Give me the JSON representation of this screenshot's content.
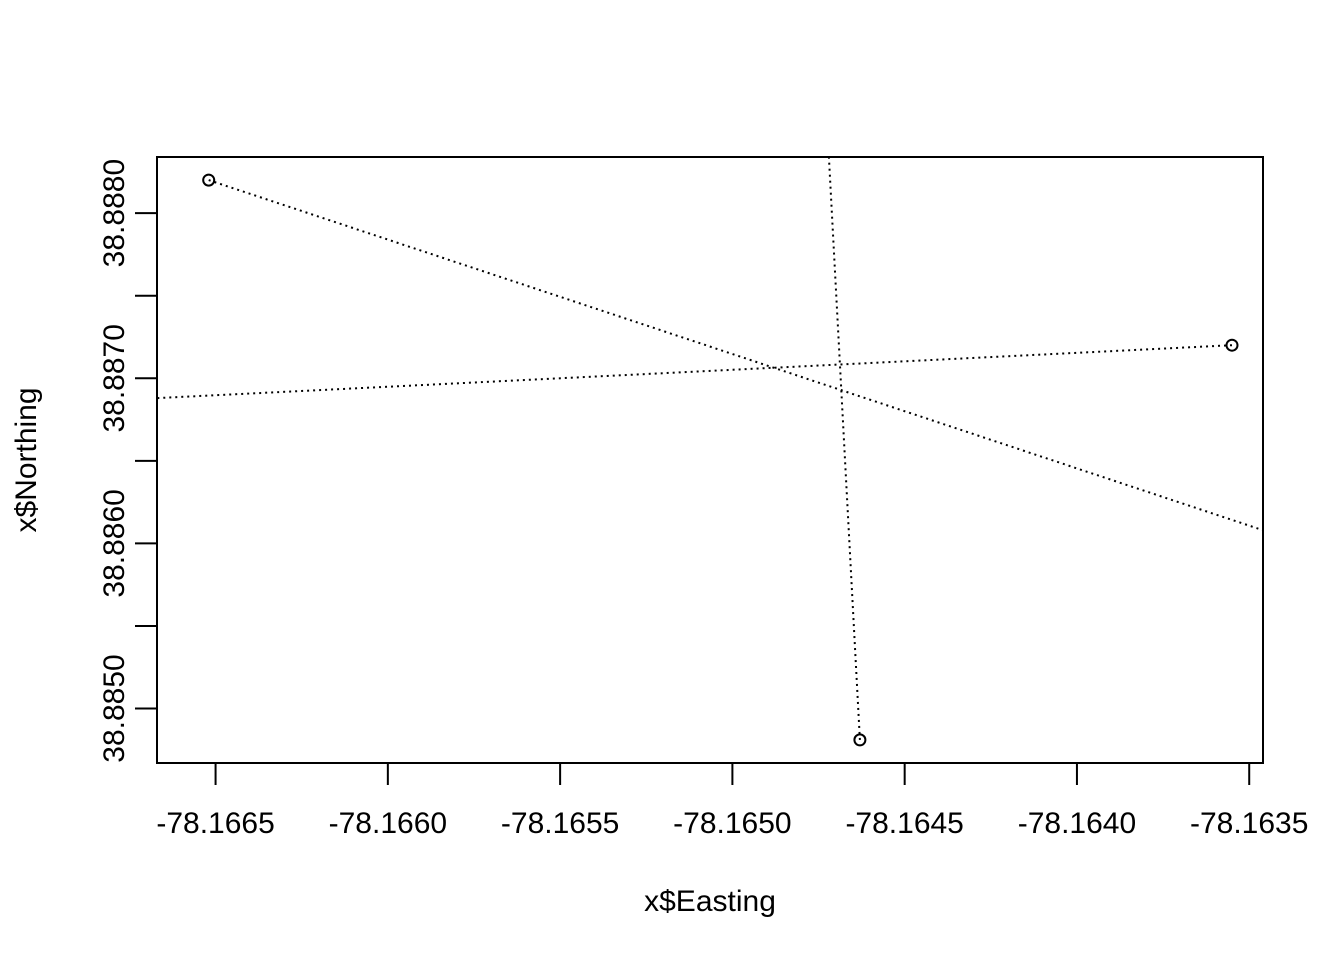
{
  "chart_data": {
    "type": "scatter",
    "title": "",
    "xlabel": "x$Easting",
    "ylabel": "x$Northing",
    "xlim": [
      -78.16667,
      -78.16346
    ],
    "ylim": [
      38.88467,
      38.88834
    ],
    "xticks": [
      -78.1665,
      -78.166,
      -78.1655,
      -78.165,
      -78.1645,
      -78.164,
      -78.1635
    ],
    "xtick_labels": [
      "-78.1665",
      "-78.1660",
      "-78.1655",
      "-78.1650",
      "-78.1645",
      "-78.1640",
      "-78.1635"
    ],
    "yticks": [
      38.885,
      38.8855,
      38.886,
      38.8865,
      38.887,
      38.8875,
      38.888
    ],
    "ytick_labels": [
      "38.8850",
      "",
      "38.8860",
      "",
      "38.8870",
      "",
      "38.8880"
    ],
    "points": [
      {
        "x": -78.16652,
        "y": 38.8882
      },
      {
        "x": -78.16355,
        "y": 38.8872
      },
      {
        "x": -78.16463,
        "y": 38.88481
      }
    ],
    "lines": [
      {
        "x": [
          -78.16652,
          -78.16346
        ],
        "y": [
          38.8882,
          38.88608
        ]
      },
      {
        "x": [
          -78.16355,
          -78.16667
        ],
        "y": [
          38.8872,
          38.88688
        ]
      },
      {
        "x": [
          -78.16463,
          -78.16472
        ],
        "y": [
          38.88481,
          38.88834
        ]
      }
    ],
    "line_style": "dotted",
    "grid": false
  }
}
